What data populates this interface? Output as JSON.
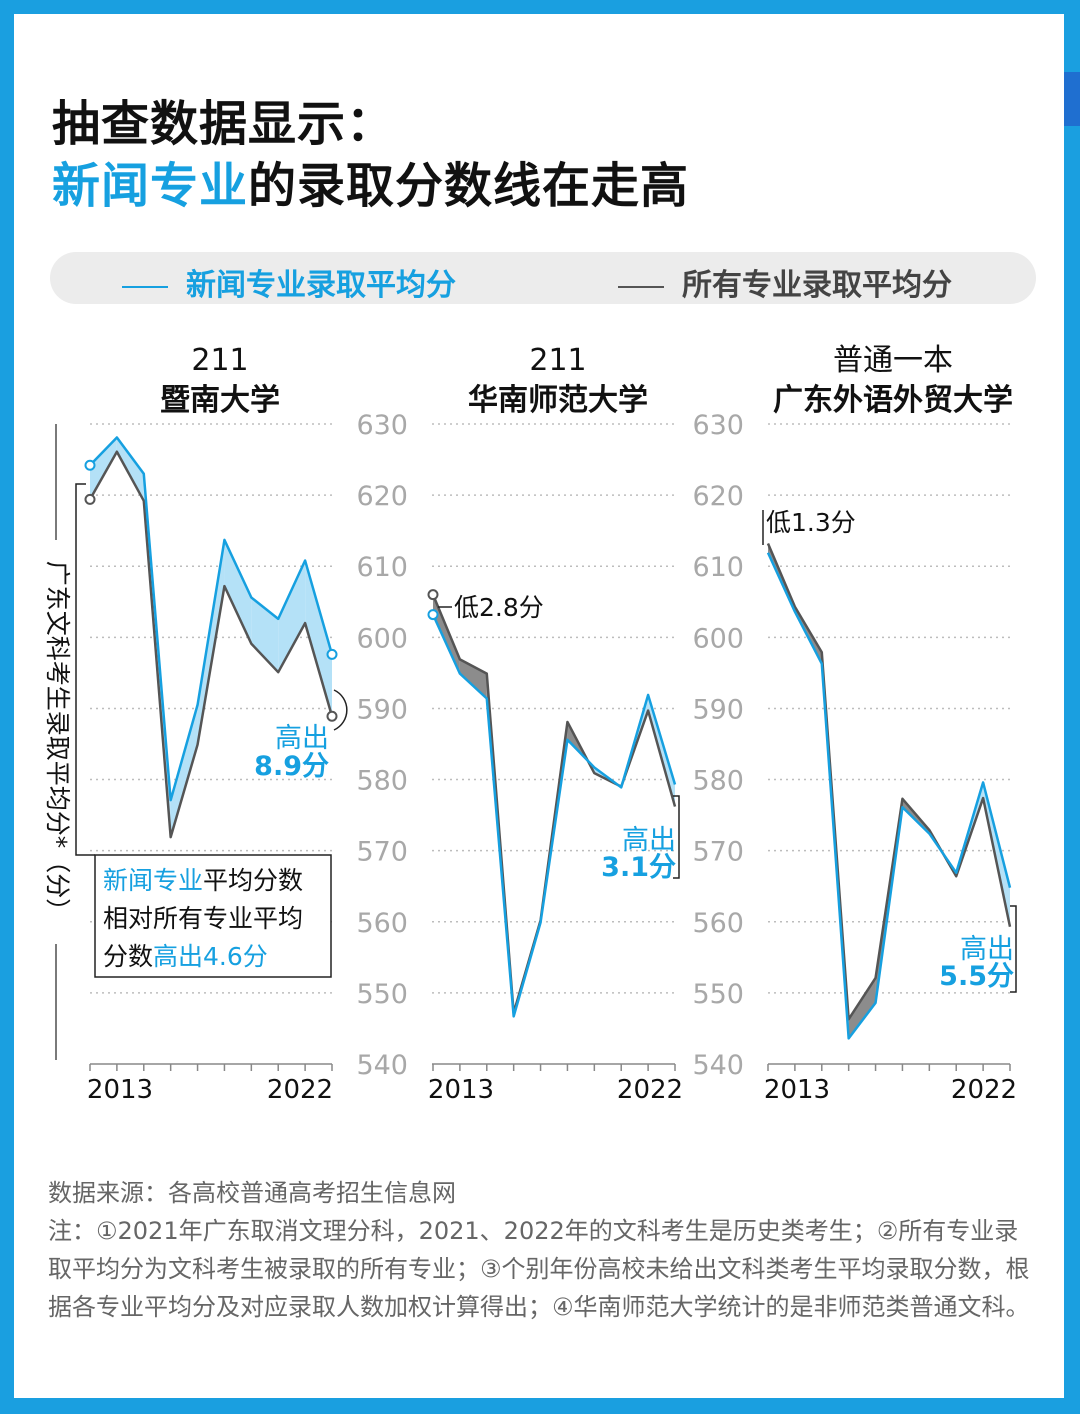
{
  "title": {
    "line1": "抽查数据显示：",
    "line2_highlight": "新闻专业",
    "line2_rest": "的录取分数线在走高"
  },
  "legend": {
    "news": "新闻专业录取平均分",
    "all": "所有专业录取平均分"
  },
  "colors": {
    "news": "#16a0e0",
    "all": "#555555",
    "fill_news_higher": "#b4e1f7",
    "fill_news_lower": "#8c8c8c"
  },
  "chart_data": {
    "type": "line",
    "ylabel": "广东文科考生录取平均分*（分）",
    "ylim": [
      540,
      630
    ],
    "yticks": [
      "540",
      "550",
      "560",
      "570",
      "580",
      "590",
      "600",
      "610",
      "620",
      "630"
    ],
    "xtick_labels": [
      "2013",
      "2022"
    ],
    "x": [
      "2013",
      "2014",
      "2015",
      "2016",
      "2017",
      "2018",
      "2019",
      "2020",
      "2021",
      "2022"
    ],
    "panels": [
      {
        "tier": "211",
        "name": "暨南大学",
        "series": [
          {
            "name": "新闻专业录取平均分",
            "values": [
              624.2,
              628.1,
              623.0,
              577.1,
              590.5,
              613.7,
              605.6,
              602.6,
              610.8,
              597.6
            ]
          },
          {
            "name": "所有专业录取平均分",
            "values": [
              619.4,
              626.1,
              619.2,
              571.9,
              584.9,
              607.2,
              599.1,
              595.1,
              602.0,
              588.9
            ]
          }
        ],
        "annotations": {
          "last": [
            "高出",
            "8.9分"
          ],
          "box": [
            "新闻专业",
            "平均分数",
            "相对所有专业平均",
            "分数",
            "高出4.6分"
          ]
        }
      },
      {
        "tier": "211",
        "name": "华南师范大学",
        "series": [
          {
            "name": "新闻专业录取平均分",
            "values": [
              603.2,
              594.9,
              591.4,
              546.7,
              559.9,
              585.6,
              581.7,
              578.9,
              591.9,
              579.3
            ]
          },
          {
            "name": "所有专业录取平均分",
            "values": [
              606.0,
              596.9,
              594.9,
              547.2,
              560.2,
              588.1,
              580.9,
              579.0,
              589.7,
              576.2
            ]
          }
        ],
        "annotations": {
          "first": "低2.8分",
          "last": [
            "高出",
            "3.1分"
          ]
        }
      },
      {
        "tier": "普通一本",
        "name": "广东外语外贸大学",
        "series": [
          {
            "name": "新闻专业录取平均分",
            "values": [
              611.9,
              603.6,
              596.3,
              543.6,
              548.6,
              576.1,
              572.4,
              566.9,
              579.6,
              564.8
            ]
          },
          {
            "name": "所有专业录取平均分",
            "values": [
              613.2,
              604.3,
              597.9,
              546.3,
              552.1,
              577.3,
              572.9,
              566.4,
              577.4,
              559.3
            ]
          }
        ],
        "annotations": {
          "first": "低1.3分",
          "last": [
            "高出",
            "5.5分"
          ]
        }
      }
    ]
  },
  "footer": {
    "source": "数据来源：各高校普通高考招生信息网",
    "notes": "注：①2021年广东取消文理分科，2021、2022年的文科考生是历史类考生；②所有专业录取平均分为文科考生被录取的所有专业；③个别年份高校未给出文科类考生平均录取分数，根据各专业平均分及对应录取人数加权计算得出；④华南师范大学统计的是非师范类普通文科。"
  }
}
